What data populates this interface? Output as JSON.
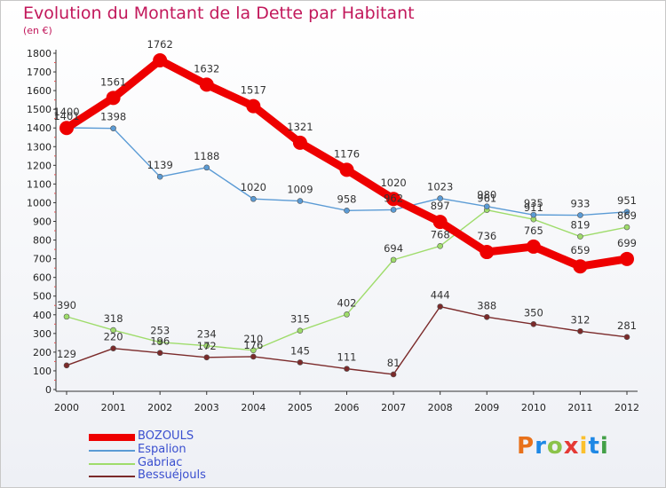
{
  "page": {
    "title": "Evolution du Montant de la Dette par Habitant",
    "unit": "(en €)",
    "logo": "Proxiti",
    "logo_colors": [
      "#e8711b",
      "#1e88e5",
      "#8bc34a",
      "#e53935",
      "#fbc02d",
      "#1e88e5",
      "#43a047"
    ]
  },
  "chart_data": {
    "type": "line",
    "title": "Evolution du Montant de la Dette par Habitant",
    "ylabel": "(en €)",
    "xlabel": "",
    "x": [
      "2000",
      "2001",
      "2002",
      "2003",
      "2004",
      "2005",
      "2006",
      "2007",
      "2008",
      "2009",
      "2010",
      "2011",
      "2012"
    ],
    "ylim": [
      0,
      1800
    ],
    "yticks": [
      0,
      100,
      200,
      300,
      400,
      500,
      600,
      700,
      800,
      900,
      1000,
      1100,
      1200,
      1300,
      1400,
      1500,
      1600,
      1700,
      1800
    ],
    "grid": false,
    "legend": "bottom-left",
    "series": [
      {
        "name": "BOZOULS",
        "color": "#ee0000",
        "values": [
          1400,
          1561,
          1762,
          1632,
          1517,
          1321,
          1176,
          1020,
          897,
          736,
          765,
          659,
          699
        ]
      },
      {
        "name": "Espalion",
        "color": "#5b9bd5",
        "values": [
          1401,
          1398,
          1139,
          1188,
          1020,
          1009,
          958,
          962,
          1023,
          980,
          935,
          933,
          951
        ]
      },
      {
        "name": "Gabriac",
        "color": "#9fdc6b",
        "values": [
          390,
          318,
          253,
          234,
          210,
          315,
          402,
          694,
          768,
          961,
          911,
          819,
          869
        ]
      },
      {
        "name": "Bessuéjouls",
        "color": "#7b2a2a",
        "values": [
          129,
          220,
          196,
          172,
          176,
          145,
          111,
          81,
          444,
          388,
          350,
          312,
          281
        ]
      }
    ]
  }
}
